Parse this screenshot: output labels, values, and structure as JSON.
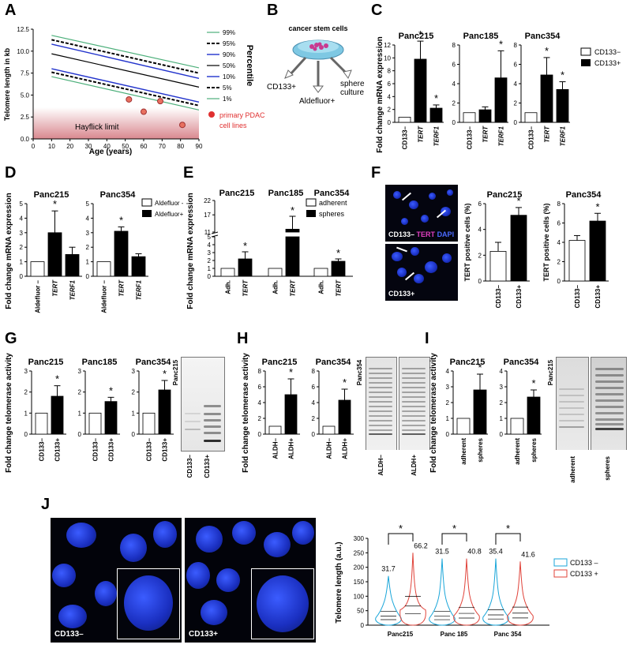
{
  "panels": {
    "A": {
      "label": "A",
      "ylabel": "Telomere length in kb",
      "xlabel": "Age (years)",
      "yticks": [
        "0.0",
        "2.5",
        "5.0",
        "7.5",
        "10.0",
        "12.5"
      ],
      "xticks": [
        "0",
        "10",
        "20",
        "30",
        "40",
        "50",
        "60",
        "70",
        "80",
        "90"
      ],
      "hayflick": "Hayflick limit",
      "percentile_title": "Percentile",
      "percentiles": [
        "99%",
        "95%",
        "90%",
        "50%",
        "10%",
        "5%",
        "1%"
      ],
      "points_legend": [
        "primary PDAC",
        "cell lines"
      ],
      "colors": {
        "green": "#4caf7a",
        "blue": "#2233cc",
        "red": "#e03030"
      }
    },
    "B": {
      "label": "B",
      "title": "cancer stem cells",
      "arrows": [
        "CD133+",
        "Aldefluor+",
        "sphere",
        "culture"
      ]
    },
    "C": {
      "label": "C",
      "ylabel": "Fold change mRNA expression",
      "charts": [
        {
          "title": "Panc215",
          "yticks": [
            "0",
            "2",
            "4",
            "6",
            "8",
            "10",
            "12"
          ],
          "cats": [
            "CD133–",
            "TERT",
            "TERF1"
          ]
        },
        {
          "title": "Panc185",
          "yticks": [
            "0",
            "2",
            "4",
            "6",
            "8"
          ],
          "cats": [
            "CD133–",
            "TERT",
            "TERF1"
          ]
        },
        {
          "title": "Panc354",
          "yticks": [
            "0",
            "2",
            "4",
            "6",
            "8"
          ],
          "cats": [
            "CD133–",
            "TERT",
            "TERF1"
          ]
        }
      ],
      "legend": [
        "CD133−",
        "CD133+"
      ],
      "star": "*"
    },
    "D": {
      "label": "D",
      "ylabel": "Fold change mRNA expression",
      "charts": [
        {
          "title": "Panc215",
          "yticks": [
            "0",
            "1",
            "2",
            "3",
            "4",
            "5"
          ],
          "cats": [
            "Aldefluor –",
            "TERT",
            "TERF1"
          ]
        },
        {
          "title": "Panc354",
          "yticks": [
            "0",
            "1",
            "2",
            "3",
            "4",
            "5"
          ],
          "cats": [
            "Aldefluor –",
            "TERT",
            "TERF1"
          ]
        }
      ],
      "legend": [
        "Aldefluor -",
        "Aldefluor+"
      ]
    },
    "E": {
      "label": "E",
      "ylabel": "Fold change mRNA expression",
      "titles": [
        "Panc215",
        "Panc185",
        "Panc354"
      ],
      "yticks": [
        "0",
        "1",
        "2",
        "3",
        "4",
        "5",
        "11",
        "17",
        "22"
      ],
      "cats": [
        "Adh.",
        "TERT",
        "Adh.",
        "TERT",
        "Adh.",
        "TERT"
      ],
      "legend": [
        "adherent",
        "spheres"
      ]
    },
    "F": {
      "label": "F",
      "img1": [
        "CD133–",
        "TERT",
        "DAPI"
      ],
      "img2": "CD133+",
      "charts": [
        {
          "title": "Panc215",
          "yticks": [
            "0",
            "2",
            "4",
            "6"
          ],
          "cats": [
            "CD133–",
            "CD133+"
          ]
        },
        {
          "title": "Panc354",
          "yticks": [
            "0",
            "2",
            "4",
            "6",
            "8"
          ],
          "cats": [
            "CD133–",
            "CD133+"
          ]
        }
      ],
      "ylabel": "TERT positive cells (%)"
    },
    "G": {
      "label": "G",
      "ylabel": "Fold change telomerase activity",
      "titles": [
        "Panc215",
        "Panc185",
        "Panc354"
      ],
      "yticks": [
        "0",
        "1",
        "2",
        "3"
      ],
      "cats": [
        "CD133–",
        "CD133+"
      ],
      "gel_title": "Panc215",
      "gel_cats": [
        "CD133–",
        "CD133+"
      ]
    },
    "H": {
      "label": "H",
      "ylabel": "Fold change telomerase activity",
      "titles": [
        "Panc215",
        "Panc354"
      ],
      "yticks": [
        "0",
        "2",
        "4",
        "6",
        "8"
      ],
      "cats": [
        "ALDH–",
        "ALDH+"
      ],
      "gel_title": "Panc354",
      "gel_cats": [
        "ALDH–",
        "ALDH+"
      ]
    },
    "I": {
      "label": "I",
      "ylabel": "Fold change telomerase activity",
      "titles": [
        "Panc215",
        "Panc354"
      ],
      "yticks": [
        "0",
        "1",
        "2",
        "3",
        "4"
      ],
      "cats": [
        "adherent",
        "spheres"
      ],
      "gel_title": "Panc215",
      "gel_cats": [
        "adherent",
        "spheres"
      ]
    },
    "J": {
      "label": "J",
      "img1": "CD133–",
      "img2": "CD133+",
      "ylabel": "Telomere length (a.u.)",
      "yticks": [
        "0",
        "50",
        "100",
        "150",
        "200",
        "250",
        "300"
      ],
      "groups": [
        "Panc215",
        "Panc 185",
        "Panc 354"
      ],
      "medians": [
        "31.7",
        "66.2",
        "31.5",
        "40.8",
        "35.4",
        "41.6"
      ],
      "legend": [
        "CD133 –",
        "CD133 +"
      ],
      "colors": {
        "neg": "#1aa6d9",
        "pos": "#e0433a"
      }
    }
  },
  "chart_data": [
    {
      "type": "line",
      "panel": "A",
      "xlim": [
        0,
        90
      ],
      "ylim": [
        0,
        12.5
      ],
      "series": [
        {
          "name": "99%",
          "x": [
            10,
            90
          ],
          "y": [
            11.8,
            8.1
          ]
        },
        {
          "name": "95%",
          "x": [
            10,
            90
          ],
          "y": [
            11.3,
            7.5
          ]
        },
        {
          "name": "90%",
          "x": [
            10,
            90
          ],
          "y": [
            10.8,
            6.9
          ]
        },
        {
          "name": "50%",
          "x": [
            10,
            90
          ],
          "y": [
            9.7,
            5.9
          ]
        },
        {
          "name": "10%",
          "x": [
            10,
            90
          ],
          "y": [
            8.0,
            4.2
          ]
        },
        {
          "name": "5%",
          "x": [
            10,
            90
          ],
          "y": [
            7.6,
            3.8
          ]
        },
        {
          "name": "1%",
          "x": [
            10,
            90
          ],
          "y": [
            7.1,
            3.3
          ]
        }
      ],
      "points": {
        "x": [
          52,
          60,
          69,
          81
        ],
        "y": [
          4.5,
          3.1,
          4.3,
          1.6
        ]
      }
    },
    {
      "type": "bar",
      "panel": "C",
      "series": [
        {
          "title": "Panc215",
          "ylim": [
            0,
            12
          ],
          "values": [
            0.8,
            9.8,
            2.2
          ],
          "err": [
            0,
            2.8,
            0.5
          ],
          "stars": [
            0,
            1,
            1
          ]
        },
        {
          "title": "Panc185",
          "ylim": [
            0,
            8
          ],
          "values": [
            1.0,
            1.3,
            4.6
          ],
          "err": [
            0,
            0.3,
            2.8
          ],
          "stars": [
            0,
            0,
            1
          ]
        },
        {
          "title": "Panc354",
          "ylim": [
            0,
            8
          ],
          "values": [
            1.0,
            4.9,
            3.4
          ],
          "err": [
            0,
            1.8,
            0.8
          ],
          "stars": [
            0,
            1,
            1
          ]
        }
      ]
    },
    {
      "type": "bar",
      "panel": "D",
      "series": [
        {
          "title": "Panc215",
          "ylim": [
            0,
            5
          ],
          "values": [
            1.0,
            3.0,
            1.5
          ],
          "err": [
            0,
            1.5,
            0.5
          ],
          "stars": [
            0,
            1,
            0
          ]
        },
        {
          "title": "Panc354",
          "ylim": [
            0,
            5
          ],
          "values": [
            1.0,
            3.1,
            1.35
          ],
          "err": [
            0,
            0.3,
            0.2
          ],
          "stars": [
            0,
            1,
            0
          ]
        }
      ]
    },
    {
      "type": "bar",
      "panel": "E",
      "values": [
        1.0,
        2.2,
        1.0,
        12.0,
        1.0,
        1.9
      ],
      "err": [
        0,
        0.9,
        0,
        4.5,
        0,
        0.3
      ],
      "stars": [
        0,
        1,
        0,
        1,
        0,
        1
      ]
    },
    {
      "type": "bar",
      "panel": "F",
      "series": [
        {
          "title": "Panc215",
          "ylim": [
            0,
            6
          ],
          "values": [
            2.3,
            5.1
          ],
          "err": [
            0.7,
            0.6
          ],
          "stars": [
            0,
            1
          ]
        },
        {
          "title": "Panc354",
          "ylim": [
            0,
            8
          ],
          "values": [
            4.2,
            6.2
          ],
          "err": [
            0.5,
            0.8
          ],
          "stars": [
            0,
            1
          ]
        }
      ]
    },
    {
      "type": "bar",
      "panel": "G",
      "ylim": [
        0,
        3
      ],
      "series": [
        {
          "title": "Panc215",
          "values": [
            1.0,
            1.8
          ],
          "err": [
            0,
            0.5
          ]
        },
        {
          "title": "Panc185",
          "values": [
            1.0,
            1.55
          ],
          "err": [
            0,
            0.2
          ]
        },
        {
          "title": "Panc354",
          "values": [
            1.0,
            2.1
          ],
          "err": [
            0,
            0.45
          ]
        }
      ]
    },
    {
      "type": "bar",
      "panel": "H",
      "ylim": [
        0,
        8
      ],
      "series": [
        {
          "title": "Panc215",
          "values": [
            1.0,
            5.0
          ],
          "err": [
            0,
            2.0
          ]
        },
        {
          "title": "Panc354",
          "values": [
            1.0,
            4.3
          ],
          "err": [
            0,
            1.4
          ]
        }
      ]
    },
    {
      "type": "bar",
      "panel": "I",
      "ylim": [
        0,
        4
      ],
      "series": [
        {
          "title": "Panc215",
          "values": [
            1.0,
            2.8
          ],
          "err": [
            0,
            1.0
          ]
        },
        {
          "title": "Panc354",
          "values": [
            1.0,
            2.35
          ],
          "err": [
            0,
            0.45
          ]
        }
      ]
    },
    {
      "type": "violin",
      "panel": "J",
      "ylim": [
        0,
        300
      ],
      "medians": [
        31.7,
        66.2,
        31.5,
        40.8,
        35.4,
        41.6
      ],
      "max": [
        170,
        250,
        230,
        230,
        230,
        220
      ]
    }
  ]
}
